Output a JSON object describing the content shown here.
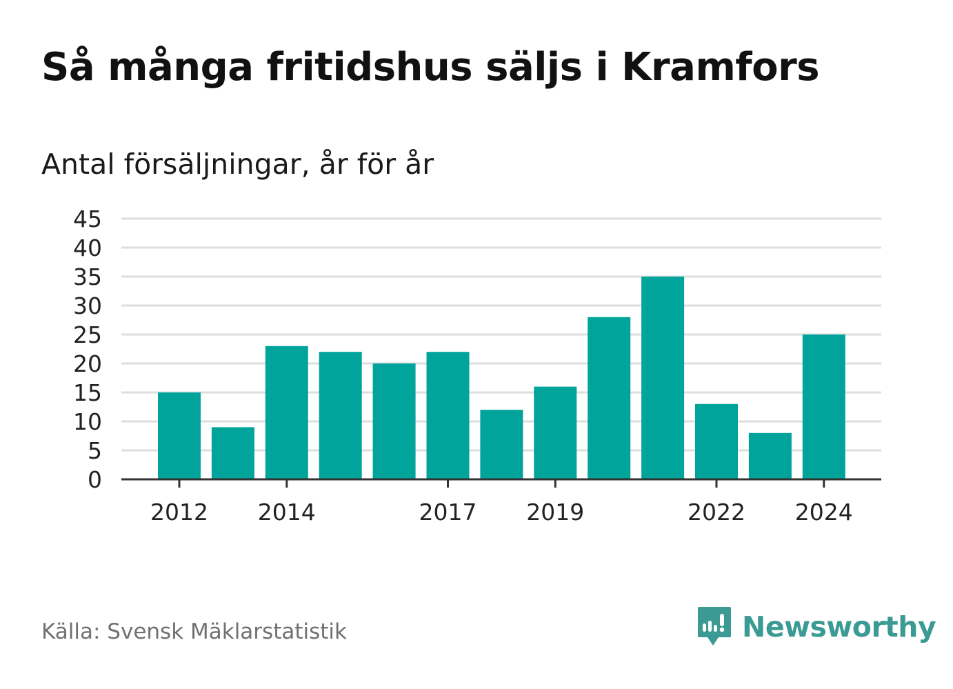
{
  "chart_data": {
    "type": "bar",
    "title": "Så många fritidshus säljs i Kramfors",
    "subtitle": "Antal försäljningar, år för år",
    "categories": [
      2012,
      2013,
      2014,
      2015,
      2016,
      2017,
      2018,
      2019,
      2020,
      2021,
      2022,
      2023,
      2024
    ],
    "values": [
      15,
      9,
      23,
      22,
      20,
      22,
      12,
      16,
      28,
      35,
      13,
      8,
      25
    ],
    "x_tick_labels": [
      "2012",
      "2014",
      "2017",
      "2019",
      "2022",
      "2024"
    ],
    "y_ticks": [
      0,
      5,
      10,
      15,
      20,
      25,
      30,
      35,
      40,
      45
    ],
    "ylim": [
      0,
      45
    ],
    "grid": true,
    "bar_color": "#00a49b",
    "grid_color": "#dddddd",
    "axis_color": "#333333"
  },
  "footer": {
    "source": "Källa: Svensk Mäklarstatistik",
    "brand": "Newsworthy",
    "brand_color": "#3b9a94",
    "brand_icon": "newsworthy-logo-icon"
  }
}
